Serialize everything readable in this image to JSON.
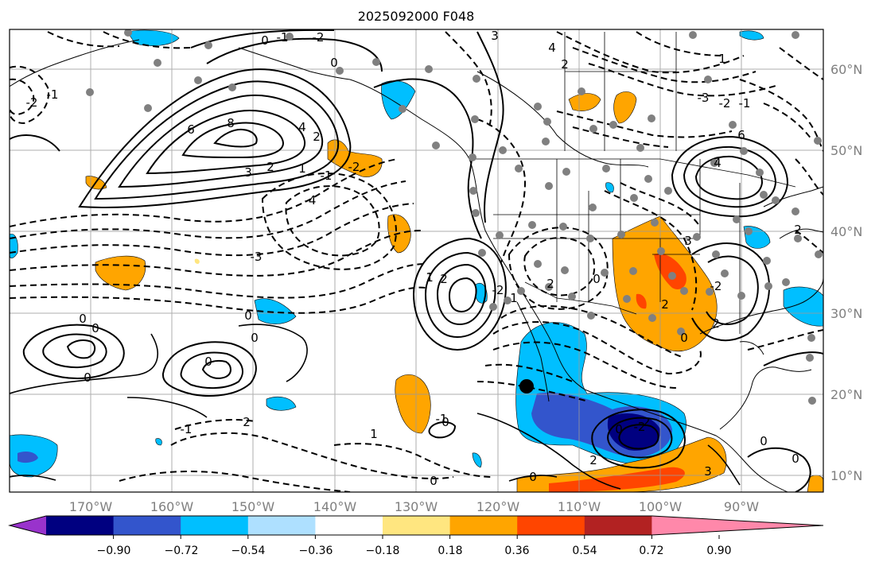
{
  "title": "2025092000 F048",
  "map": {
    "lat_labels": [
      "60°N",
      "50°N",
      "40°N",
      "30°N",
      "20°N",
      "10°N"
    ],
    "lon_labels": [
      "170°W",
      "160°W",
      "150°W",
      "140°W",
      "130°W",
      "120°W",
      "110°W",
      "100°W",
      "90°W"
    ],
    "contour_labels": [
      "0",
      "-1",
      "-2",
      "0",
      "-2",
      "-1",
      "6",
      "8",
      "4",
      "2",
      "3",
      "2",
      "1",
      "-2",
      "-1",
      "-4",
      "-3",
      "3",
      "4",
      "2",
      "1",
      "-3",
      "-2",
      "-1",
      "6",
      "4",
      "3",
      "2",
      "1",
      "2",
      "-2",
      "2",
      "1",
      "0",
      "2",
      "2",
      "0",
      "0",
      "0",
      "0",
      "0",
      "0",
      "-1",
      "2",
      "0",
      "1",
      "0",
      "-1",
      "0",
      "2",
      "-2",
      "-2",
      "0",
      "3",
      "0",
      "0",
      "0",
      "-2"
    ]
  },
  "colorbar": {
    "tick_labels": [
      "−0.90",
      "−0.72",
      "−0.54",
      "−0.36",
      "−0.18",
      "0.18",
      "0.36",
      "0.54",
      "0.72",
      "0.90"
    ],
    "colors": [
      "#9933cc",
      "#000080",
      "#3355cc",
      "#00bfff",
      "#aee0ff",
      "#ffffff",
      "#ffe680",
      "#ffa500",
      "#ff4500",
      "#b22222",
      "#ff88aa"
    ]
  }
}
